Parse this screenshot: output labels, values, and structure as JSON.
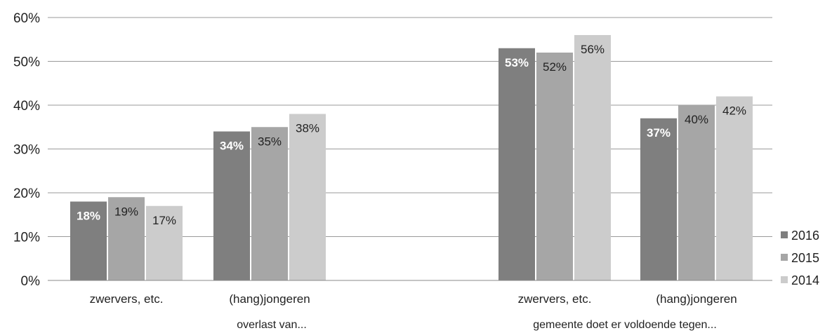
{
  "chart_data": {
    "type": "bar",
    "ylim": [
      0,
      60
    ],
    "yticks": [
      "0%",
      "10%",
      "20%",
      "30%",
      "40%",
      "50%",
      "60%"
    ],
    "ytick_values": [
      0,
      10,
      20,
      30,
      40,
      50,
      60
    ],
    "grid": true,
    "legend_position": "right",
    "categories": [
      "zwervers, etc.",
      "(hang)jongeren",
      "zwervers, etc.",
      "(hang)jongeren"
    ],
    "groups": [
      {
        "label": "overlast van...",
        "categories": [
          "zwervers, etc.",
          "(hang)jongeren"
        ]
      },
      {
        "label": "gemeente doet er voldoende tegen...",
        "categories": [
          "zwervers, etc.",
          "(hang)jongeren"
        ]
      }
    ],
    "series": [
      {
        "name": "2016",
        "color": "#7f7f7f",
        "label_color": "#ffffff",
        "values": [
          18,
          34,
          53,
          37
        ],
        "labels": [
          "18%",
          "34%",
          "53%",
          "37%"
        ]
      },
      {
        "name": "2015",
        "color": "#a6a6a6",
        "label_color": "#222222",
        "values": [
          19,
          35,
          52,
          40
        ],
        "labels": [
          "19%",
          "35%",
          "52%",
          "40%"
        ]
      },
      {
        "name": "2014",
        "color": "#cccccc",
        "label_color": "#222222",
        "values": [
          17,
          38,
          56,
          42
        ],
        "labels": [
          "17%",
          "38%",
          "56%",
          "42%"
        ]
      }
    ]
  }
}
